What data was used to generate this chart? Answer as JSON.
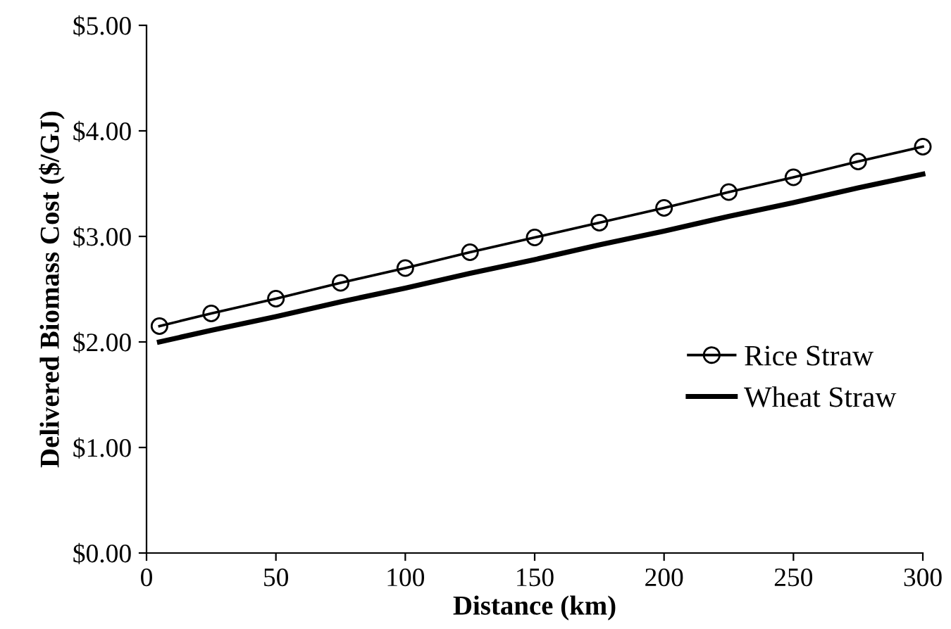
{
  "chart_data": {
    "type": "line",
    "xlabel": "Distance (km)",
    "ylabel": "Delivered Biomass Cost ($/GJ)",
    "x": [
      5,
      25,
      50,
      75,
      100,
      125,
      150,
      175,
      200,
      225,
      250,
      275,
      300
    ],
    "series": [
      {
        "name": "Rice Straw",
        "color": "#000000",
        "marker": "circle",
        "values": [
          2.15,
          2.27,
          2.41,
          2.56,
          2.7,
          2.85,
          2.99,
          3.13,
          3.27,
          3.42,
          3.56,
          3.71,
          3.85
        ]
      },
      {
        "name": "Wheat Straw",
        "color": "#000000",
        "marker": "none",
        "values": [
          2.0,
          2.11,
          2.24,
          2.38,
          2.51,
          2.65,
          2.78,
          2.92,
          3.05,
          3.19,
          3.32,
          3.46,
          3.59
        ]
      }
    ],
    "xlim": [
      0,
      300
    ],
    "xticks": [
      0,
      50,
      100,
      150,
      200,
      250,
      300
    ],
    "ylim": [
      0,
      5
    ],
    "yticks": [
      {
        "value": 0,
        "label": "$0.00"
      },
      {
        "value": 1,
        "label": "$1.00"
      },
      {
        "value": 2,
        "label": "$2.00"
      },
      {
        "value": 3,
        "label": "$3.00"
      },
      {
        "value": 4,
        "label": "$4.00"
      },
      {
        "value": 5,
        "label": "$5.00"
      }
    ],
    "grid": false,
    "legend": "right",
    "line_style": "solid"
  }
}
